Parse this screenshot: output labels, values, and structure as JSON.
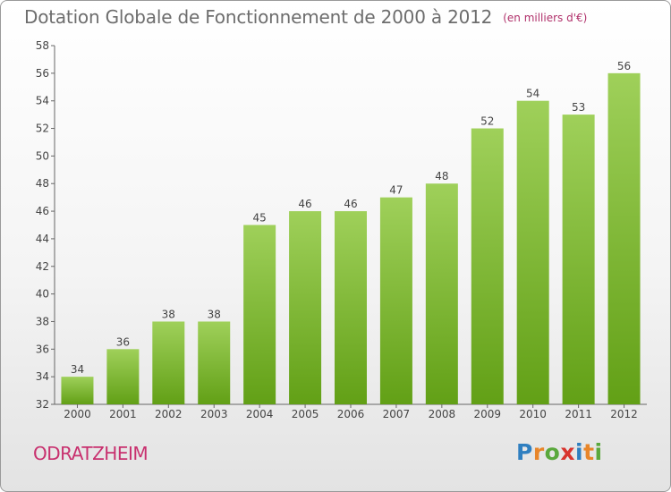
{
  "title": "Dotation Globale de Fonctionnement de 2000 à 2012",
  "unit_note": "(en milliers d'€)",
  "commune": "ODRATZHEIM",
  "logo": {
    "letters": [
      "P",
      "r",
      "o",
      "x",
      "i",
      "t",
      "i"
    ],
    "colors": [
      "#2f7fc0",
      "#e8862a",
      "#5aa83c",
      "#d8342e",
      "#2f7fc0",
      "#e8862a",
      "#5aa83c"
    ]
  },
  "colors": {
    "bar_top": "#9fd05a",
    "bar_bottom": "#62a016",
    "title": "#6d6d6d",
    "accent": "#c8306e"
  },
  "chart_data": {
    "type": "bar",
    "title": "Dotation Globale de Fonctionnement de 2000 à 2012",
    "subtitle": "(en milliers d'€)",
    "categories": [
      "2000",
      "2001",
      "2002",
      "2003",
      "2004",
      "2005",
      "2006",
      "2007",
      "2008",
      "2009",
      "2010",
      "2011",
      "2012"
    ],
    "values": [
      34,
      36,
      38,
      38,
      45,
      46,
      46,
      47,
      48,
      52,
      54,
      53,
      56
    ],
    "ylim": [
      32,
      58
    ],
    "yticks": [
      32,
      34,
      36,
      38,
      40,
      42,
      44,
      46,
      48,
      50,
      52,
      54,
      56,
      58
    ],
    "grid": false,
    "legend": "none"
  }
}
